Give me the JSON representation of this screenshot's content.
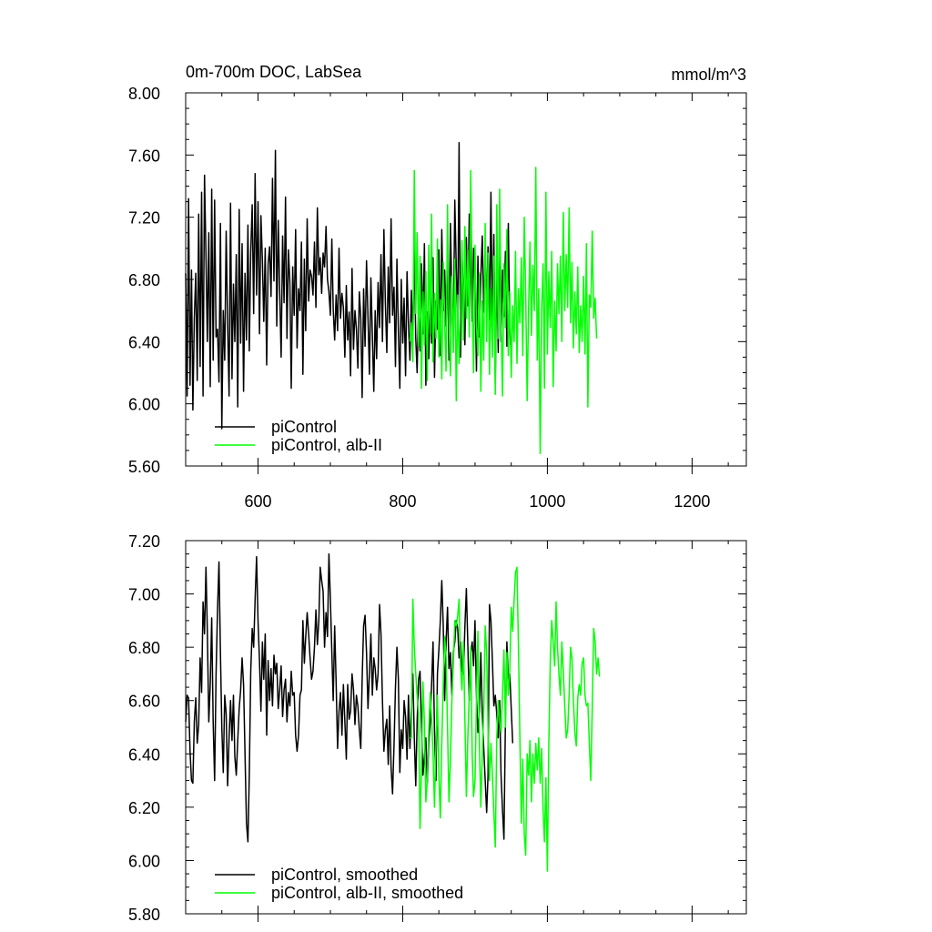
{
  "chart_data": [
    {
      "type": "line",
      "title": "0m-700m DOC, LabSea",
      "units": "mmol/m^3",
      "xlim": [
        500,
        1275
      ],
      "ylim": [
        5.6,
        8.0
      ],
      "xticks": [
        600,
        800,
        1000,
        1200
      ],
      "xtick_labels": [
        "600",
        "800",
        "1000",
        "1200"
      ],
      "yticks": [
        5.6,
        6.0,
        6.4,
        6.8,
        7.2,
        7.6,
        8.0
      ],
      "ytick_labels": [
        "5.60",
        "6.00",
        "6.40",
        "6.80",
        "7.20",
        "7.60",
        "8.00"
      ],
      "legend_position": "bottom-left",
      "series": [
        {
          "name": "piControl",
          "color": "#000000",
          "x_start": 500,
          "x_step": 2,
          "values": [
            6.84,
            6.05,
            7.32,
            6.12,
            6.86,
            5.96,
            6.55,
            6.84,
            6.15,
            7.22,
            6.24,
            7.36,
            6.05,
            7.47,
            6.95,
            6.4,
            7.1,
            6.11,
            7.38,
            6.28,
            7.31,
            6.43,
            6.48,
            6.14,
            7.16,
            5.84,
            6.6,
            6.28,
            7.11,
            6.51,
            6.05,
            7.29,
            6.16,
            6.77,
            6.4,
            6.96,
            5.98,
            7.25,
            6.39,
            7.03,
            6.08,
            6.84,
            6.41,
            7.15,
            6.34,
            6.98,
            7.28,
            6.58,
            7.48,
            6.7,
            7.3,
            6.45,
            7.21,
            6.92,
            6.53,
            7.0,
            6.25,
            6.9,
            7.01,
            6.69,
            7.45,
            6.79,
            7.63,
            6.5,
            7.18,
            6.73,
            6.3,
            7.08,
            6.65,
            7.33,
            6.42,
            6.99,
            6.78,
            6.1,
            6.88,
            6.57,
            7.12,
            6.36,
            6.74,
            6.6,
            7.04,
            6.19,
            6.93,
            6.47,
            7.19,
            6.66,
            6.86,
            6.82,
            6.7,
            7.04,
            6.62,
            7.26,
            6.83,
            6.94,
            6.71,
            6.97,
            6.88,
            7.14,
            6.8,
            6.72,
            6.57,
            7.06,
            6.61,
            6.41,
            6.7,
            6.47,
            7.0,
            6.55,
            6.71,
            6.62,
            6.3,
            6.76,
            6.41,
            6.59,
            6.18,
            6.87,
            6.35,
            6.6,
            6.48,
            6.23,
            6.72,
            6.55,
            6.04,
            6.74,
            6.37,
            6.92,
            6.56,
            6.19,
            6.81,
            6.44,
            6.08,
            6.6,
            6.29,
            6.78,
            6.49,
            6.96,
            6.4,
            7.12,
            6.65,
            6.33,
            6.88,
            6.52,
            7.19,
            6.57,
            6.75,
            6.24,
            6.93,
            6.47,
            6.1,
            6.8,
            6.39,
            6.68,
            6.18,
            6.85,
            6.51,
            6.28,
            6.73,
            6.44,
            6.99,
            6.42,
            6.2,
            6.63,
            6.34,
            6.9,
            6.45,
            7.03,
            6.12,
            6.59,
            6.29,
            6.76,
            6.39,
            6.94,
            6.17,
            6.66,
            6.48,
            6.99,
            6.31,
            7.12,
            6.6,
            6.86,
            6.5,
            6.92,
            6.28,
            7.16,
            6.7,
            6.46,
            7.31,
            6.87,
            6.51,
            7.68,
            6.3,
            6.96,
            6.7,
            6.38,
            7.07,
            6.63,
            7.22,
            6.95,
            6.53,
            7.0,
            6.78,
            6.21,
            6.95,
            6.43,
            6.82,
            7.08,
            6.59,
            6.9,
            6.66,
            7.01,
            6.54,
            7.36,
            6.48,
            7.09,
            6.13,
            6.87,
            6.33,
            7.2,
            6.4,
            6.86,
            6.56,
            6.98,
            6.37,
            7.16,
            6.49,
            6.3
          ]
        },
        {
          "name": "piControl, alb-II",
          "color": "#00ff00",
          "x_start": 810,
          "x_step": 2,
          "values": [
            6.4,
            6.52,
            6.27,
            7.5,
            6.58,
            7.1,
            6.37,
            6.95,
            6.1,
            6.72,
            6.38,
            6.85,
            6.15,
            7.02,
            6.45,
            7.22,
            6.27,
            6.71,
            6.42,
            7.06,
            6.3,
            6.67,
            6.16,
            6.91,
            6.51,
            6.21,
            7.28,
            6.52,
            6.18,
            6.82,
            6.33,
            6.93,
            6.02,
            6.7,
            6.26,
            6.62,
            7.05,
            6.41,
            7.14,
            6.55,
            6.99,
            6.43,
            7.5,
            6.68,
            6.2,
            7.02,
            6.5,
            6.31,
            6.84,
            6.08,
            6.66,
            6.28,
            7.16,
            6.4,
            6.97,
            6.19,
            6.74,
            6.3,
            6.95,
            6.06,
            7.28,
            6.42,
            7.38,
            6.56,
            6.05,
            6.9,
            6.49,
            7.12,
            6.31,
            6.72,
            6.17,
            6.63,
            6.4,
            6.98,
            6.26,
            6.74,
            6.52,
            6.94,
            6.31,
            7.2,
            6.7,
            6.02,
            6.62,
            7.04,
            6.44,
            6.89,
            6.6,
            7.52,
            6.28,
            6.74,
            5.68,
            6.6,
            6.9,
            6.1,
            7.36,
            6.32,
            6.85,
            6.49,
            6.98,
            6.11,
            6.66,
            6.34,
            6.9,
            6.58,
            6.95,
            6.4,
            7.23,
            6.6,
            6.96,
            6.62,
            7.26,
            6.52,
            6.91,
            6.36,
            6.72,
            6.45,
            6.88,
            6.33,
            6.63,
            6.4,
            6.82,
            6.32,
            7.03,
            5.98,
            6.7,
            6.62,
            7.11,
            6.55,
            6.68,
            6.42
          ]
        }
      ]
    },
    {
      "type": "line",
      "xlim": [
        500,
        1275
      ],
      "ylim": [
        5.8,
        7.2
      ],
      "xticks": [
        600,
        800,
        1000,
        1200
      ],
      "yticks": [
        5.8,
        6.0,
        6.2,
        6.4,
        6.6,
        6.8,
        7.0,
        7.2
      ],
      "ytick_labels": [
        "5.80",
        "6.00",
        "6.20",
        "6.40",
        "6.60",
        "6.80",
        "7.00",
        "7.20"
      ],
      "legend_position": "bottom-left",
      "series": [
        {
          "name": "piControl, smoothed",
          "color": "#000000",
          "x_start": 500,
          "x_step": 2,
          "values": [
            6.52,
            6.62,
            6.61,
            6.41,
            6.3,
            6.29,
            6.52,
            6.61,
            6.44,
            6.51,
            6.76,
            6.63,
            6.97,
            6.85,
            7.1,
            6.86,
            6.52,
            6.66,
            6.91,
            6.52,
            6.3,
            6.7,
            6.94,
            7.12,
            6.78,
            6.5,
            6.33,
            6.62,
            6.55,
            6.28,
            6.46,
            6.6,
            6.45,
            6.62,
            6.39,
            6.32,
            6.45,
            6.57,
            6.64,
            6.76,
            6.66,
            6.4,
            6.14,
            6.07,
            6.32,
            6.71,
            6.87,
            6.8,
            6.98,
            7.14,
            6.9,
            6.75,
            6.56,
            6.82,
            6.68,
            6.85,
            6.47,
            6.75,
            6.6,
            6.72,
            6.58,
            6.77,
            6.7,
            6.74,
            6.57,
            6.64,
            6.73,
            6.54,
            6.64,
            6.68,
            6.52,
            6.63,
            6.58,
            6.71,
            6.62,
            6.63,
            6.47,
            6.41,
            6.47,
            6.62,
            6.64,
            6.9,
            6.74,
            6.84,
            6.93,
            6.85,
            6.76,
            6.68,
            6.71,
            6.8,
            6.94,
            6.81,
            6.9,
            7.1,
            7.05,
            7.01,
            6.8,
            6.93,
            6.84,
            7.15,
            6.98,
            6.78,
            6.6,
            6.88,
            6.67,
            6.42,
            6.56,
            6.63,
            6.47,
            6.66,
            6.52,
            6.38,
            6.66,
            6.53,
            6.56,
            6.7,
            6.64,
            6.51,
            6.62,
            6.58,
            6.49,
            6.42,
            6.68,
            6.88,
            6.92,
            6.78,
            6.57,
            6.7,
            6.85,
            6.62,
            6.76,
            6.72,
            6.64,
            6.7,
            6.96,
            6.85,
            6.6,
            6.41,
            6.49,
            6.53,
            6.36,
            6.58,
            6.35,
            6.25,
            6.43,
            6.65,
            6.8,
            6.68,
            6.33,
            6.49,
            6.42,
            6.6,
            6.54,
            6.38,
            6.62,
            6.42,
            6.56,
            6.7,
            6.46,
            6.28,
            6.52,
            6.68,
            6.71,
            6.5,
            6.32,
            6.39,
            6.46,
            6.29,
            6.44,
            6.52,
            6.66,
            6.82,
            6.48,
            6.3,
            6.7,
            6.79,
            6.9,
            7.05,
            6.88,
            6.6,
            6.82,
            6.95,
            6.72,
            6.78,
            6.62,
            6.78,
            6.82,
            6.9,
            6.87,
            6.76,
            6.82,
            6.71,
            6.7,
            6.88,
            7.02,
            6.81,
            6.6,
            6.78,
            6.82,
            6.73,
            6.9,
            6.62,
            6.48,
            6.56,
            6.78,
            6.55,
            6.42,
            6.3,
            6.18,
            6.32,
            6.96,
            6.9,
            6.75,
            6.58,
            6.62,
            6.55,
            6.46,
            6.6,
            6.32,
            6.19,
            6.08,
            6.52,
            6.82,
            6.68,
            6.7,
            6.57,
            6.44
          ]
        },
        {
          "name": "piControl, alb-II, smoothed",
          "color": "#00ff00",
          "x_start": 810,
          "x_step": 2,
          "values": [
            6.46,
            6.46,
            6.98,
            6.8,
            6.7,
            6.62,
            6.55,
            6.12,
            6.35,
            6.67,
            6.52,
            6.22,
            6.3,
            6.49,
            6.63,
            6.53,
            6.4,
            6.2,
            6.44,
            6.62,
            6.32,
            6.16,
            6.44,
            6.66,
            6.84,
            6.76,
            6.5,
            6.22,
            6.38,
            6.6,
            6.74,
            6.9,
            6.88,
            6.92,
            6.98,
            6.73,
            6.64,
            6.82,
            6.53,
            6.24,
            6.46,
            6.62,
            6.8,
            6.4,
            6.24,
            6.3,
            6.6,
            6.86,
            6.44,
            6.2,
            6.4,
            6.56,
            6.88,
            6.78,
            6.5,
            6.3,
            6.44,
            6.32,
            6.18,
            6.05,
            6.46,
            6.6,
            6.52,
            6.48,
            6.62,
            6.79,
            6.5,
            6.78,
            6.62,
            6.71,
            6.95,
            6.86,
            6.98,
            7.08,
            7.1,
            6.81,
            6.46,
            6.14,
            6.38,
            6.1,
            6.02,
            6.4,
            6.32,
            6.45,
            6.22,
            6.4,
            6.29,
            6.44,
            6.34,
            6.46,
            6.29,
            6.42,
            6.19,
            6.07,
            6.31,
            5.96,
            6.44,
            6.75,
            6.9,
            6.82,
            6.73,
            6.97,
            6.8,
            6.7,
            6.62,
            6.82,
            6.71,
            6.58,
            6.46,
            6.49,
            6.62,
            6.8,
            6.76,
            6.6,
            6.48,
            6.43,
            6.61,
            6.66,
            6.62,
            6.74,
            6.76,
            6.62,
            6.58,
            6.59,
            6.44,
            6.3,
            6.57,
            6.87,
            6.82,
            6.7,
            6.76,
            6.69
          ]
        }
      ]
    }
  ]
}
